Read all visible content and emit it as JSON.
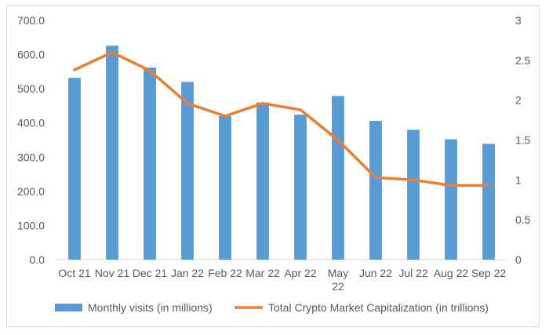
{
  "chart_data": {
    "type": "bar",
    "categories": [
      "Oct 21",
      "Nov 21",
      "Dec 21",
      "Jan 22",
      "Feb 22",
      "Mar 22",
      "Apr 22",
      "May 22",
      "Jun 22",
      "Jul 22",
      "Aug 22",
      "Sep 22"
    ],
    "series": [
      {
        "name": "Monthly visits (in millions)",
        "type": "bar",
        "axis": "left",
        "color": "#5b9bd5",
        "values": [
          532,
          626,
          562,
          520,
          420,
          460,
          424,
          479,
          406,
          380,
          352,
          339
        ]
      },
      {
        "name": "Total Crypto Market Capitalization (in trillions)",
        "type": "line",
        "axis": "right",
        "color": "#ed7d31",
        "values": [
          2.38,
          2.6,
          2.37,
          1.96,
          1.8,
          1.96,
          1.88,
          1.5,
          1.03,
          1.0,
          0.93,
          0.93
        ]
      }
    ],
    "y_left": {
      "ylim": [
        0,
        700
      ],
      "ticks": [
        "0.0",
        "100.0",
        "200.0",
        "300.0",
        "400.0",
        "500.0",
        "600.0",
        "700.0"
      ]
    },
    "y_right": {
      "ylim": [
        0,
        3
      ],
      "ticks": [
        "0",
        "0.5",
        "1",
        "1.5",
        "2",
        "2.5",
        "3"
      ]
    },
    "grid": false,
    "legend": "bottom"
  }
}
